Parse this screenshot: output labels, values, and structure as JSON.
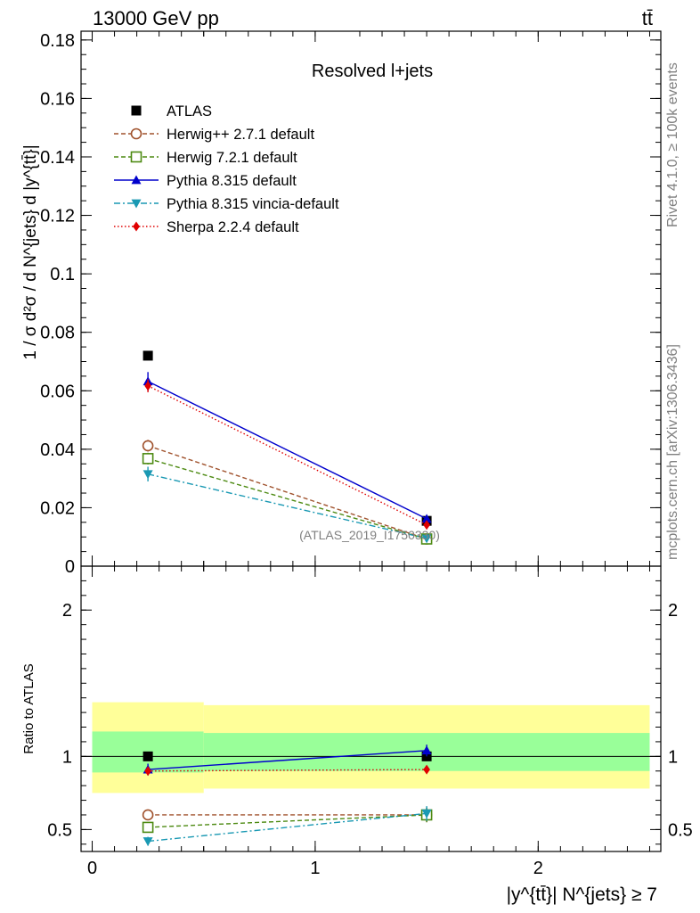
{
  "header": {
    "left": "13000 GeV pp",
    "right": "tt̄"
  },
  "side_labels": {
    "rivet": "Rivet 4.1.0, ≥ 100k events",
    "mcplots": "mcplots.cern.ch [arXiv:1306.3436]"
  },
  "chart_data": {
    "type": "line",
    "title": "Resolved l+jets",
    "watermark": "(ATLAS_2019_I1750330)",
    "xlabel": "|y^{tt̄}| N^{jets} ≥ 7",
    "ylabel": "1 / σ d²σ / d N^{jets} d |y^{tt̄}|",
    "xlim": [
      -0.05,
      2.55
    ],
    "main": {
      "ylim": [
        0,
        0.183
      ],
      "yticks": [
        0,
        0.02,
        0.04,
        0.06,
        0.08,
        0.1,
        0.12,
        0.14,
        0.16,
        0.18
      ],
      "ytick_labels": [
        "0",
        "0.02",
        "0.04",
        "0.06",
        "0.08",
        "0.1",
        "0.12",
        "0.14",
        "0.16",
        "0.18"
      ]
    },
    "ratio": {
      "ylabel": "Ratio to ATLAS",
      "ylim": [
        0.35,
        2.3
      ],
      "yticks": [
        0.5,
        1,
        2
      ],
      "ytick_labels": [
        "0.5",
        "1",
        "2"
      ],
      "bands": [
        {
          "x0": 0,
          "x1": 0.5,
          "inner": [
            0.89,
            1.17
          ],
          "outer": [
            0.75,
            1.37
          ]
        },
        {
          "x0": 0.5,
          "x1": 2.5,
          "inner": [
            0.9,
            1.16
          ],
          "outer": [
            0.78,
            1.35
          ]
        }
      ]
    },
    "xticks": [
      0,
      1,
      2
    ],
    "xtick_labels": [
      "0",
      "1",
      "2"
    ],
    "x": [
      0.25,
      1.5
    ],
    "series": [
      {
        "name": "ATLAS",
        "color": "#000000",
        "marker": "square-filled",
        "line": "none",
        "values": [
          0.072,
          0.0155
        ],
        "ratio": [
          1,
          1
        ]
      },
      {
        "name": "Herwig++ 2.7.1 default",
        "color": "#a0522d",
        "marker": "circle-open",
        "line": "dashed",
        "values": [
          0.0412,
          0.0093
        ],
        "ratio": [
          0.6,
          0.6
        ],
        "err": [
          0.002,
          0.0008
        ],
        "ratio_err": [
          0.03,
          0.05
        ]
      },
      {
        "name": "Herwig 7.2.1 default",
        "color": "#4d8a12",
        "marker": "square-open",
        "line": "dashed",
        "values": [
          0.0368,
          0.0093
        ],
        "ratio": [
          0.515,
          0.6
        ],
        "err": [
          0.002,
          0.0008
        ],
        "ratio_err": [
          0.03,
          0.05
        ]
      },
      {
        "name": "Pythia 8.315 default",
        "color": "#0000cc",
        "marker": "triangle-up",
        "line": "solid",
        "values": [
          0.0632,
          0.0162
        ],
        "ratio": [
          0.91,
          1.04
        ],
        "err": [
          0.0032,
          0.0008
        ],
        "ratio_err": [
          0.04,
          0.04
        ]
      },
      {
        "name": "Pythia 8.315 vincia-default",
        "color": "#1a99b3",
        "marker": "triangle-down",
        "line": "dashdot",
        "values": [
          0.0315,
          0.0095
        ],
        "ratio": [
          0.42,
          0.61
        ],
        "err": [
          0.0025,
          0.0008
        ],
        "ratio_err": [
          0.03,
          0.05
        ]
      },
      {
        "name": "Sherpa 2.2.4 default",
        "color": "#e00000",
        "marker": "diamond",
        "line": "dotted",
        "values": [
          0.0617,
          0.0141
        ],
        "ratio": [
          0.9,
          0.91
        ],
        "err": [
          0.0022,
          0.0008
        ],
        "ratio_err": [
          0.025,
          0.025
        ]
      }
    ]
  }
}
